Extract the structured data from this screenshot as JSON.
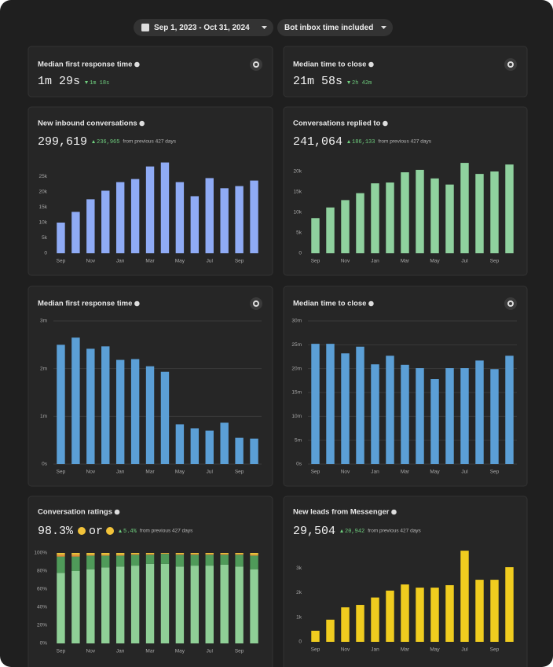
{
  "header": {
    "date_range": "Sep 1, 2023 - Oct 31, 2024",
    "filter": "Bot inbox time included"
  },
  "stat_cards": [
    {
      "title": "Median first response time",
      "value": "1m 29s",
      "delta": "1m 18s"
    },
    {
      "title": "Median time to close",
      "value": "21m 58s",
      "delta": "2h 42m"
    }
  ],
  "chart_data": [
    {
      "type": "bar",
      "title": "New inbound conversations",
      "total": "299,619",
      "delta": "236,965",
      "delta_note": "from previous 427 days",
      "categories": [
        "Sep",
        null,
        "Nov",
        null,
        "Jan",
        null,
        "Mar",
        null,
        "May",
        null,
        "Jul",
        null,
        "Sep",
        null
      ],
      "values": [
        10000,
        13500,
        17600,
        20400,
        23200,
        24200,
        28300,
        29600,
        23200,
        18600,
        24500,
        21200,
        21900,
        23700
      ],
      "color": "#8fabf5",
      "ylim": [
        0,
        30000
      ],
      "yticks": [
        0,
        {
          "value": 5000,
          "label": "5k"
        },
        {
          "value": 10000,
          "label": "10k"
        },
        {
          "value": 15000,
          "label": "15k"
        },
        {
          "value": 20000,
          "label": "20k"
        },
        {
          "value": 25000,
          "label": "25k"
        }
      ],
      "grid": false
    },
    {
      "type": "bar",
      "title": "Conversations replied to",
      "total": "241,064",
      "delta": "186,133",
      "delta_note": "from previous 427 days",
      "categories": [
        "Sep",
        null,
        "Nov",
        null,
        "Jan",
        null,
        "Mar",
        null,
        "May",
        null,
        "Jul",
        null,
        "Sep",
        null
      ],
      "values": [
        8600,
        11200,
        13000,
        14700,
        17100,
        17300,
        19800,
        20400,
        18300,
        16800,
        22100,
        19400,
        20000,
        21700
      ],
      "color": "#8fd19e",
      "ylim": [
        0,
        22500
      ],
      "yticks": [
        0,
        {
          "value": 5000,
          "label": "5k"
        },
        {
          "value": 10000,
          "label": "10k"
        },
        {
          "value": 15000,
          "label": "15k"
        },
        {
          "value": 20000,
          "label": "20k"
        }
      ],
      "grid": false
    },
    {
      "type": "bar",
      "title": "Median first response time",
      "categories": [
        "Sep",
        null,
        "Nov",
        null,
        "Jan",
        null,
        "Mar",
        null,
        "May",
        null,
        "Jul",
        null,
        "Sep",
        null
      ],
      "values": [
        150,
        159,
        145,
        148,
        131,
        132,
        123,
        116,
        50,
        45,
        42,
        52,
        33,
        32
      ],
      "color": "#5b9fd6",
      "ylim": [
        0,
        180
      ],
      "yticks": [
        {
          "value": 0,
          "label": "0s"
        },
        {
          "value": 60,
          "label": "1m"
        },
        {
          "value": 120,
          "label": "2m"
        },
        {
          "value": 180,
          "label": "3m"
        }
      ],
      "grid": true
    },
    {
      "type": "bar",
      "title": "Median time to close",
      "categories": [
        "Sep",
        null,
        "Nov",
        null,
        "Jan",
        null,
        "Mar",
        null,
        "May",
        null,
        "Jul",
        null,
        "Sep",
        null
      ],
      "values": [
        1512,
        1512,
        1392,
        1476,
        1254,
        1362,
        1248,
        1206,
        1068,
        1206,
        1206,
        1302,
        1194,
        1362
      ],
      "color": "#5b9fd6",
      "ylim": [
        0,
        1800
      ],
      "yticks": [
        {
          "value": 0,
          "label": "0s"
        },
        {
          "value": 300,
          "label": "5m"
        },
        {
          "value": 600,
          "label": "10m"
        },
        {
          "value": 900,
          "label": "15m"
        },
        {
          "value": 1200,
          "label": "20m"
        },
        {
          "value": 1500,
          "label": "25m"
        },
        {
          "value": 1800,
          "label": "30m"
        }
      ],
      "grid": true
    },
    {
      "type": "stacked_bar",
      "title": "Conversation ratings",
      "total": "98.3%",
      "connector": "or",
      "delta": "5.4%",
      "delta_note": "from previous 427 days",
      "categories": [
        "Sep",
        null,
        "Nov",
        null,
        "Jan",
        null,
        "Mar",
        null,
        "May",
        null,
        "Jul",
        null,
        "Sep",
        null
      ],
      "series": [
        {
          "color": "#8fcf96",
          "values": [
            78,
            80,
            82,
            84,
            85,
            86,
            88,
            88,
            85,
            86,
            86,
            87,
            85,
            82
          ]
        },
        {
          "color": "#4f9a59",
          "values": [
            18,
            16,
            15,
            13,
            12,
            12,
            10,
            11,
            13,
            12,
            12,
            11,
            13,
            15
          ]
        },
        {
          "color": "#e8913a",
          "values": [
            2,
            2,
            1,
            1,
            1,
            1,
            1,
            0.5,
            1,
            1,
            1,
            1,
            1,
            1
          ]
        },
        {
          "color": "#e8c23a",
          "values": [
            2,
            2,
            2,
            2,
            2,
            1,
            1,
            0.5,
            1,
            1,
            1,
            1,
            1,
            2
          ]
        }
      ],
      "ylim": [
        0,
        100
      ],
      "yticks": [
        {
          "value": 0,
          "label": "0%"
        },
        {
          "value": 20,
          "label": "20%"
        },
        {
          "value": 40,
          "label": "40%"
        },
        {
          "value": 60,
          "label": "60%"
        },
        {
          "value": 80,
          "label": "80%"
        },
        {
          "value": 100,
          "label": "100%"
        }
      ],
      "grid": false
    },
    {
      "type": "bar",
      "title": "New leads from Messenger",
      "total": "29,504",
      "delta": "20,942",
      "delta_note": "from previous 427 days",
      "categories": [
        "Sep",
        null,
        "Nov",
        null,
        "Jan",
        null,
        "Mar",
        null,
        "May",
        null,
        "Jul",
        null,
        "Sep",
        null
      ],
      "values": [
        450,
        900,
        1400,
        1500,
        1800,
        2080,
        2330,
        2200,
        2200,
        2300,
        3700,
        2520,
        2520,
        3030
      ],
      "color": "#f0cc1f",
      "ylim": [
        0,
        3800
      ],
      "yticks": [
        0,
        {
          "value": 1000,
          "label": "1k"
        },
        {
          "value": 2000,
          "label": "2k"
        },
        {
          "value": 3000,
          "label": "3k"
        }
      ],
      "grid": false
    }
  ]
}
